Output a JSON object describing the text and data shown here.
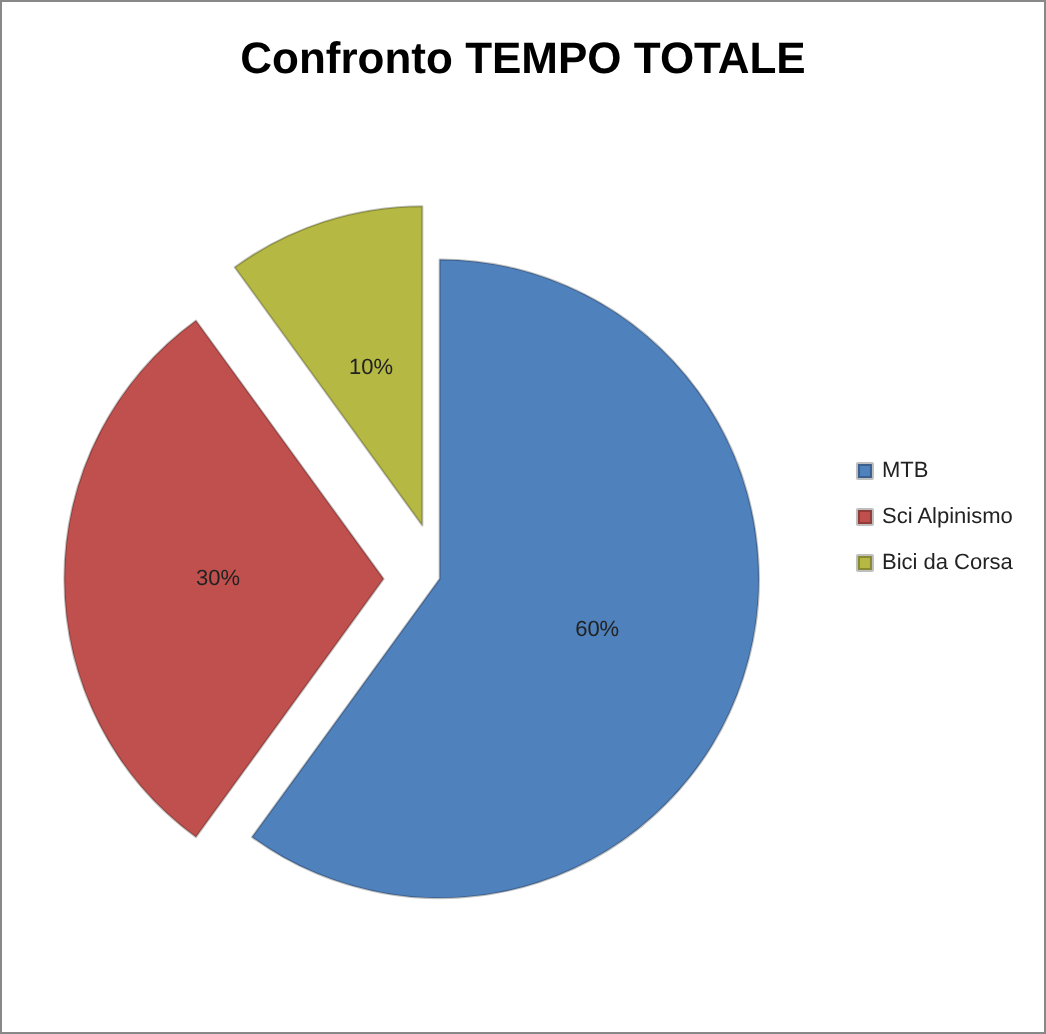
{
  "chart_data": {
    "type": "pie",
    "title": "Confronto TEMPO TOTALE",
    "categories": [
      "MTB",
      "Sci Alpinismo",
      "Bici da Corsa"
    ],
    "values": [
      60,
      30,
      10
    ],
    "colors": [
      "#4f81bd",
      "#c0504d",
      "#b5b843"
    ],
    "value_labels": [
      "60%",
      "30%",
      "10%"
    ],
    "legend": "right"
  }
}
